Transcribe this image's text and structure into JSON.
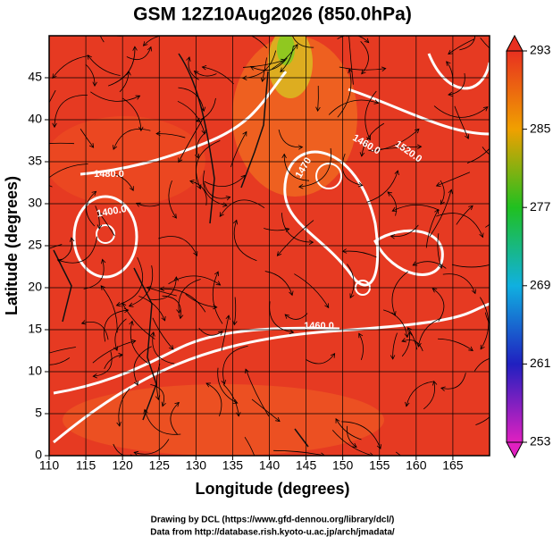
{
  "chart_data": {
    "type": "map",
    "title": "GSM 12Z10Aug2026 (850.0hPa)",
    "xlabel": "Longitude (degrees)",
    "ylabel": "Latitude  (degrees)",
    "xlim": [
      110,
      170
    ],
    "xticks": [
      110,
      115,
      120,
      125,
      130,
      135,
      140,
      145,
      150,
      155,
      160,
      165
    ],
    "ylim": [
      0,
      50
    ],
    "yticks": [
      0,
      5,
      10,
      15,
      20,
      25,
      30,
      35,
      40,
      45
    ],
    "grid": true,
    "colorbar": {
      "lim": [
        253,
        293
      ],
      "ticks": [
        253,
        261,
        269,
        277,
        285,
        293
      ],
      "colors": [
        "#e020c0",
        "#2020c0",
        "#10b0e0",
        "#20c020",
        "#f0a000",
        "#e83020"
      ]
    },
    "contour_labels": [
      "1480.0",
      "1400.0",
      "1460.0",
      "1520.0",
      "1470",
      "1460.0"
    ]
  },
  "credits": [
    "Drawing by DCL (https://www.gfd-dennou.org/library/dcl/)",
    "Data from http://database.rish.kyoto-u.ac.jp/arch/jmadata/"
  ]
}
